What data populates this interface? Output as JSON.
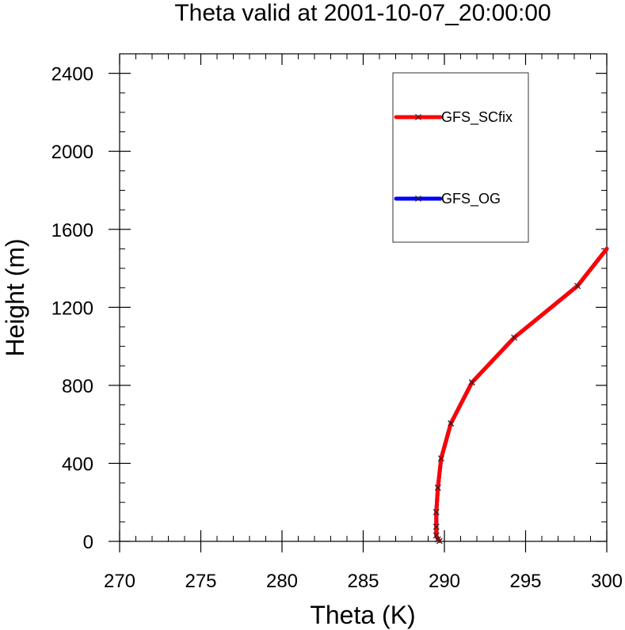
{
  "chart_data": {
    "type": "line",
    "title": "Theta valid at 2001-10-07_20:00:00",
    "xlabel": "Theta (K)",
    "ylabel": "Height (m)",
    "xlim": [
      270,
      300
    ],
    "ylim": [
      0,
      2500
    ],
    "x_ticks": [
      "270",
      "275",
      "280",
      "285",
      "290",
      "295",
      "300"
    ],
    "y_ticks": [
      "0",
      "400",
      "800",
      "1200",
      "1600",
      "2000",
      "2400"
    ],
    "legend_position": "top-right",
    "series": [
      {
        "name": "GFS_SCfix",
        "color": "#ff0000",
        "marker": "x",
        "points": [
          [
            289.7,
            2
          ],
          [
            289.6,
            10
          ],
          [
            289.5,
            30
          ],
          [
            289.5,
            75
          ],
          [
            289.5,
            150
          ],
          [
            289.6,
            275
          ],
          [
            289.8,
            425
          ],
          [
            290.4,
            605
          ],
          [
            291.7,
            815
          ],
          [
            294.3,
            1045
          ],
          [
            298.2,
            1310
          ],
          [
            300.0,
            1500
          ]
        ]
      },
      {
        "name": "GFS_OG",
        "color": "#0000ff",
        "marker": "x",
        "points": [
          [
            289.7,
            2
          ],
          [
            289.6,
            10
          ],
          [
            289.5,
            30
          ],
          [
            289.5,
            75
          ],
          [
            289.5,
            150
          ],
          [
            289.6,
            275
          ],
          [
            289.8,
            425
          ],
          [
            290.4,
            605
          ],
          [
            291.7,
            815
          ],
          [
            294.3,
            1045
          ],
          [
            298.2,
            1310
          ],
          [
            300.0,
            1500
          ]
        ]
      }
    ]
  }
}
